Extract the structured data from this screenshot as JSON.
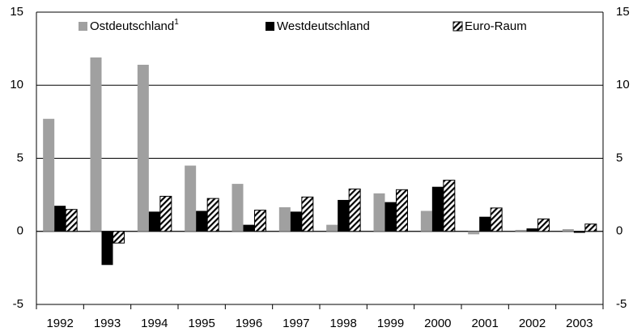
{
  "chart_data": {
    "type": "bar",
    "categories": [
      "1992",
      "1993",
      "1994",
      "1995",
      "1996",
      "1997",
      "1998",
      "1999",
      "2000",
      "2001",
      "2002",
      "2003"
    ],
    "series": [
      {
        "name": "Ostdeutschland",
        "name_superscript": "1",
        "color": "#a0a0a0",
        "hatch": false,
        "values": [
          7.7,
          11.9,
          11.4,
          4.5,
          3.25,
          1.65,
          0.45,
          2.6,
          1.4,
          -0.2,
          0.1,
          0.15
        ]
      },
      {
        "name": "Westdeutschland",
        "color": "#000000",
        "hatch": false,
        "values": [
          1.75,
          -2.3,
          1.35,
          1.4,
          0.45,
          1.35,
          2.15,
          2.0,
          3.05,
          1.0,
          0.2,
          -0.1
        ]
      },
      {
        "name": "Euro-Raum",
        "color": "#000000",
        "hatch": true,
        "values": [
          1.5,
          -0.8,
          2.4,
          2.25,
          1.45,
          2.35,
          2.9,
          2.85,
          3.5,
          1.6,
          0.85,
          0.5
        ]
      }
    ],
    "ylim": [
      -5,
      15
    ],
    "yticks": [
      -5,
      0,
      5,
      10,
      15
    ],
    "grid": true,
    "right_axis_labels": true
  }
}
